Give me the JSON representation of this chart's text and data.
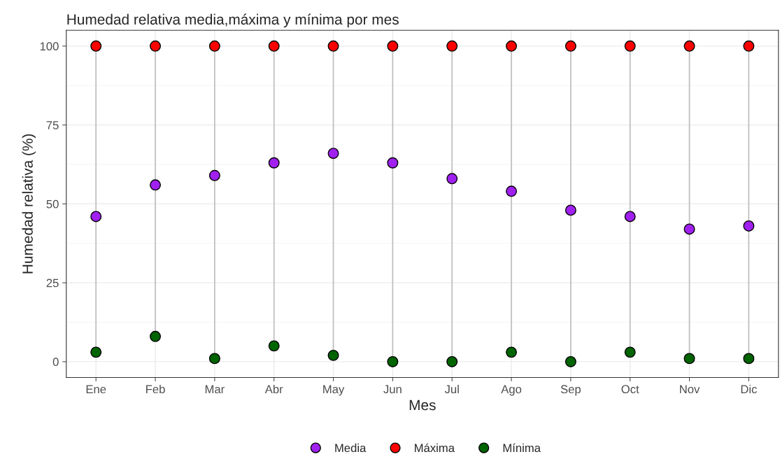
{
  "chart_data": {
    "type": "scatter",
    "title": "Humedad relativa media,máxima y mínima por mes",
    "xlabel": "Mes",
    "ylabel": "Humedad relativa (%)",
    "categories": [
      "Ene",
      "Feb",
      "Mar",
      "Abr",
      "May",
      "Jun",
      "Jul",
      "Ago",
      "Sep",
      "Oct",
      "Nov",
      "Dic"
    ],
    "series": [
      {
        "name": "Media",
        "color": "#a020f0",
        "values": [
          46,
          56,
          59,
          63,
          66,
          63,
          58,
          54,
          48,
          46,
          42,
          43
        ]
      },
      {
        "name": "Máxima",
        "color": "#ff0000",
        "values": [
          100,
          100,
          100,
          100,
          100,
          100,
          100,
          100,
          100,
          100,
          100,
          100
        ]
      },
      {
        "name": "Mínima",
        "color": "#006400",
        "values": [
          3,
          8,
          1,
          5,
          2,
          0,
          0,
          3,
          0,
          3,
          1,
          1
        ]
      }
    ],
    "ylim": [
      -5,
      105
    ],
    "yticks": [
      0,
      25,
      50,
      75,
      100
    ],
    "grid": true,
    "legend": "bottom",
    "marker": "circle"
  }
}
